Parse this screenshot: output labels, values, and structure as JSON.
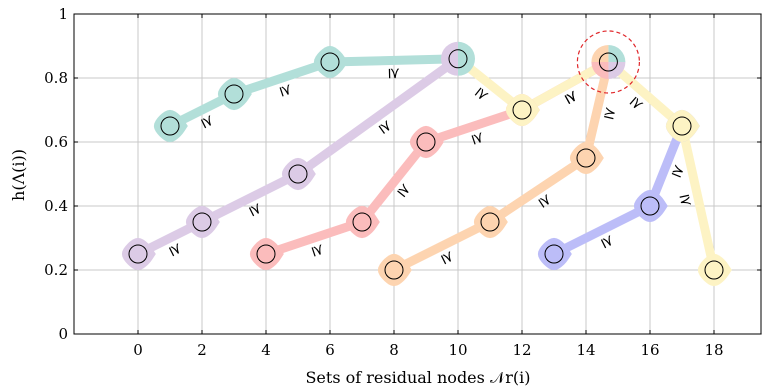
{
  "chart_data": {
    "type": "line",
    "xlabel": "Sets of residual nodes 𝒩r(i)",
    "ylabel": "h(Λ(i))",
    "xlim": [
      -2,
      19.5
    ],
    "ylim": [
      0,
      1
    ],
    "xticks": [
      "0",
      "2",
      "4",
      "6",
      "8",
      "10",
      "12",
      "14",
      "16",
      "18"
    ],
    "yticks": [
      "0",
      "0.2",
      "0.4",
      "0.6",
      "0.8",
      "1"
    ],
    "grid": true,
    "legend": "none",
    "inequality_symbol": "⪰",
    "series": [
      {
        "color": "#b2dfd9",
        "points": [
          [
            1,
            0.65
          ],
          [
            3,
            0.75
          ],
          [
            6,
            0.85
          ],
          [
            10,
            0.86
          ]
        ]
      },
      {
        "color": "#dccbe6",
        "points": [
          [
            0,
            0.25
          ],
          [
            2,
            0.35
          ],
          [
            5,
            0.5
          ],
          [
            10,
            0.86
          ]
        ]
      },
      {
        "color": "#fbbcbc",
        "points": [
          [
            4,
            0.25
          ],
          [
            7,
            0.35
          ],
          [
            9,
            0.6
          ],
          [
            12,
            0.7
          ],
          [
            14.7,
            0.85
          ]
        ]
      },
      {
        "color": "#fdd4b0",
        "points": [
          [
            8,
            0.2
          ],
          [
            11,
            0.35
          ],
          [
            14,
            0.55
          ],
          [
            14.7,
            0.85
          ]
        ]
      },
      {
        "color": "#bcbdf8",
        "points": [
          [
            13,
            0.25
          ],
          [
            16,
            0.4
          ],
          [
            17,
            0.65
          ]
        ]
      },
      {
        "color": "#fdf3c4",
        "points": [
          [
            10,
            0.86
          ],
          [
            12,
            0.7
          ],
          [
            14.7,
            0.85
          ],
          [
            17,
            0.65
          ],
          [
            18,
            0.2
          ]
        ]
      }
    ],
    "highlight": {
      "x": 14.7,
      "y": 0.85,
      "style": "dashed-circle",
      "color": "#e0262a"
    },
    "shared_node_colors": [
      {
        "x": 10,
        "y": 0.86,
        "colors": [
          "#b2dfd9",
          "#dccbe6"
        ]
      },
      {
        "x": 14.7,
        "y": 0.85,
        "colors": [
          "#b2dfd9",
          "#dccbe6",
          "#fbbcbc",
          "#fdd4b0"
        ]
      }
    ]
  }
}
